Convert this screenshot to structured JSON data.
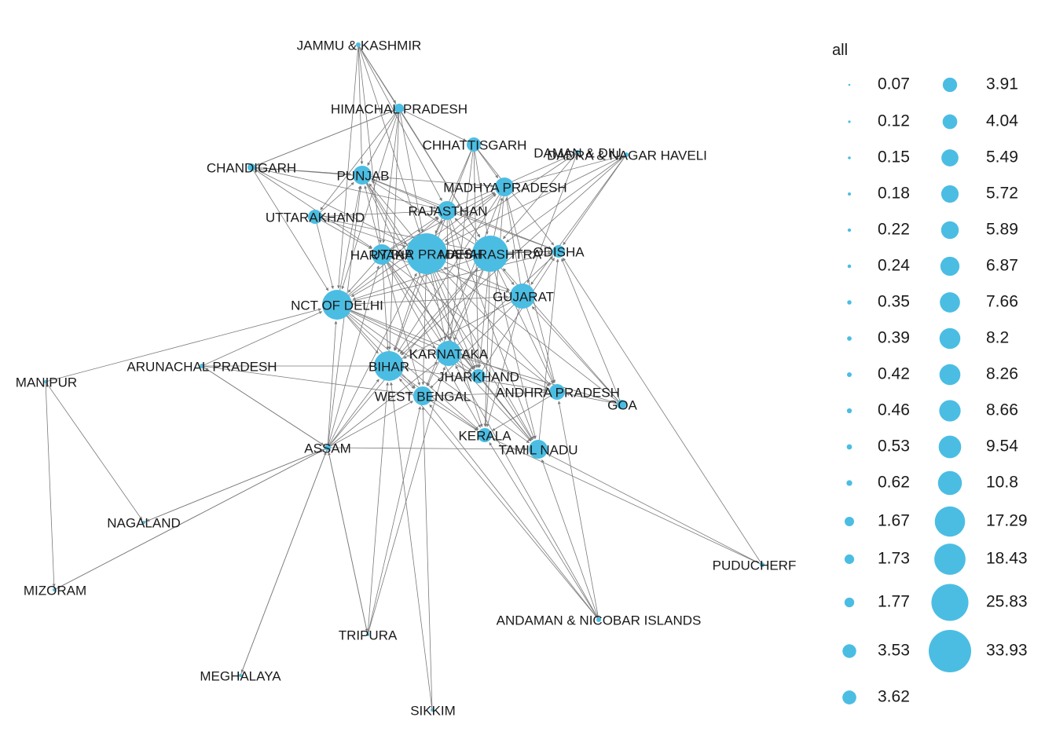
{
  "chart_data": {
    "type": "network",
    "legend": {
      "title": "all",
      "values": [
        0.07,
        0.12,
        0.15,
        0.18,
        0.22,
        0.24,
        0.35,
        0.39,
        0.42,
        0.46,
        0.53,
        0.62,
        1.67,
        1.73,
        1.77,
        3.53,
        3.62,
        3.91,
        4.04,
        5.49,
        5.72,
        5.89,
        6.87,
        7.66,
        8.2,
        8.26,
        8.66,
        9.54,
        10.8,
        17.29,
        18.43,
        25.83,
        33.93
      ]
    },
    "node_color": "#4BBDE3",
    "edge_color": "#7a7a7a",
    "nodes": [
      {
        "id": "JAMMU & KASHMIR",
        "label": "JAMMU & KASHMIR"
      },
      {
        "id": "HIMACHAL PRADESH",
        "label": "HIMACHAL PRADESH"
      },
      {
        "id": "CHHATTISGARH",
        "label": "CHHATTISGARH"
      },
      {
        "id": "DAMAN & DIU",
        "label": "DAMAN & DIU"
      },
      {
        "id": "DADRA & NAGAR HAVELI",
        "label": "DADRA & NAGAR HAVELI"
      },
      {
        "id": "CHANDIGARH",
        "label": "CHANDIGARH"
      },
      {
        "id": "PUNJAB",
        "label": "PUNJAB"
      },
      {
        "id": "MADHYA PRADESH",
        "label": "MADHYA PRADESH"
      },
      {
        "id": "RAJASTHAN",
        "label": "RAJASTHAN"
      },
      {
        "id": "UTTARAKHAND",
        "label": "UTTARAKHAND"
      },
      {
        "id": "UTTAR PRADESH",
        "label": "UTTAR PRADESH"
      },
      {
        "id": "MAHARASHTRA",
        "label": "MAHARASHTRA"
      },
      {
        "id": "HARYANA",
        "label": "HARYANA"
      },
      {
        "id": "ODISHA",
        "label": "ODISHA"
      },
      {
        "id": "GUJARAT",
        "label": "GUJARAT"
      },
      {
        "id": "NCT OF DELHI",
        "label": "NCT OF DELHI"
      },
      {
        "id": "KARNATAKA",
        "label": "KARNATAKA"
      },
      {
        "id": "BIHAR",
        "label": "BIHAR"
      },
      {
        "id": "ARUNACHAL PRADESH",
        "label": "ARUNACHAL PRADESH"
      },
      {
        "id": "MANIPUR",
        "label": "MANIPUR"
      },
      {
        "id": "JHARKHAND",
        "label": "JHARKHAND"
      },
      {
        "id": "ANDHRA PRADESH",
        "label": "ANDHRA PRADESH"
      },
      {
        "id": "WEST BENGAL",
        "label": "WEST BENGAL"
      },
      {
        "id": "GOA",
        "label": "GOA"
      },
      {
        "id": "KERALA",
        "label": "KERALA"
      },
      {
        "id": "TAMIL NADU",
        "label": "TAMIL NADU"
      },
      {
        "id": "ASSAM",
        "label": "ASSAM"
      },
      {
        "id": "NAGALAND",
        "label": "NAGALAND"
      },
      {
        "id": "MIZORAM",
        "label": "MIZORAM"
      },
      {
        "id": "PUDUCHERRY",
        "label": "PUDUCHERF"
      },
      {
        "id": "ANDAMAN & NICOBAR ISLANDS",
        "label": "ANDAMAN & NICOBAR ISLANDS"
      },
      {
        "id": "TRIPURA",
        "label": "TRIPURA"
      },
      {
        "id": "MEGHALAYA",
        "label": "MEGHALAYA"
      },
      {
        "id": "SIKKIM",
        "label": "SIKKIM"
      }
    ]
  }
}
